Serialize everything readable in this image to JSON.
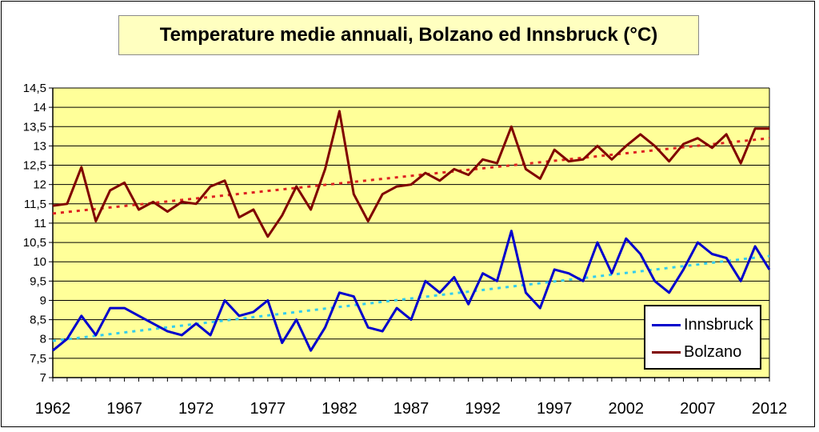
{
  "chart_data": {
    "type": "line",
    "title": "Temperature medie annuali, Bolzano ed Innsbruck (°C)",
    "xlabel": "",
    "ylabel": "",
    "ylim": [
      7,
      14.5
    ],
    "xlim": [
      1962,
      2012
    ],
    "yticks": [
      "7",
      "7,5",
      "8",
      "8,5",
      "9",
      "9,5",
      "10",
      "10,5",
      "11",
      "11,5",
      "12",
      "12,5",
      "13",
      "13,5",
      "14",
      "14,5"
    ],
    "xticks": [
      "1962",
      "1967",
      "1972",
      "1977",
      "1982",
      "1987",
      "1992",
      "1997",
      "2002",
      "2007",
      "2012"
    ],
    "grid": "horizontal",
    "legend_position": "bottom-right",
    "x": [
      1962,
      1963,
      1964,
      1965,
      1966,
      1967,
      1968,
      1969,
      1970,
      1971,
      1972,
      1973,
      1974,
      1975,
      1976,
      1977,
      1978,
      1979,
      1980,
      1981,
      1982,
      1983,
      1984,
      1985,
      1986,
      1987,
      1988,
      1989,
      1990,
      1991,
      1992,
      1993,
      1994,
      1995,
      1996,
      1997,
      1998,
      1999,
      2000,
      2001,
      2002,
      2003,
      2004,
      2005,
      2006,
      2007,
      2008,
      2009,
      2010,
      2011,
      2012
    ],
    "series": [
      {
        "name": "Innsbruck",
        "color": "#0000cc",
        "values": [
          7.7,
          8.0,
          8.6,
          8.1,
          8.8,
          8.8,
          8.6,
          8.4,
          8.2,
          8.1,
          8.4,
          8.1,
          9.0,
          8.6,
          8.7,
          9.0,
          7.9,
          8.5,
          7.7,
          8.3,
          9.2,
          9.1,
          8.3,
          8.2,
          8.8,
          8.5,
          9.5,
          9.2,
          9.6,
          8.9,
          9.7,
          9.5,
          10.8,
          9.2,
          8.8,
          9.8,
          9.7,
          9.5,
          10.5,
          9.7,
          10.6,
          10.2,
          9.5,
          9.2,
          9.8,
          10.5,
          10.2,
          10.1,
          9.5,
          10.4,
          9.8
        ],
        "trend": {
          "color": "#33ccee",
          "start": 7.95,
          "end": 10.15
        }
      },
      {
        "name": "Bolzano",
        "color": "#800000",
        "values": [
          11.45,
          11.5,
          12.45,
          11.05,
          11.85,
          12.05,
          11.35,
          11.55,
          11.3,
          11.55,
          11.5,
          11.95,
          12.1,
          11.15,
          11.35,
          10.65,
          11.2,
          11.95,
          11.35,
          12.4,
          13.9,
          11.75,
          11.05,
          11.75,
          11.95,
          12.0,
          12.3,
          12.1,
          12.4,
          12.25,
          12.65,
          12.55,
          13.5,
          12.4,
          12.15,
          12.9,
          12.6,
          12.65,
          13.0,
          12.65,
          13.0,
          13.3,
          13.0,
          12.6,
          13.05,
          13.2,
          12.95,
          13.3,
          12.55,
          13.45,
          13.45
        ],
        "trend": {
          "color": "#dd2222",
          "start": 11.25,
          "end": 13.2
        }
      }
    ]
  }
}
